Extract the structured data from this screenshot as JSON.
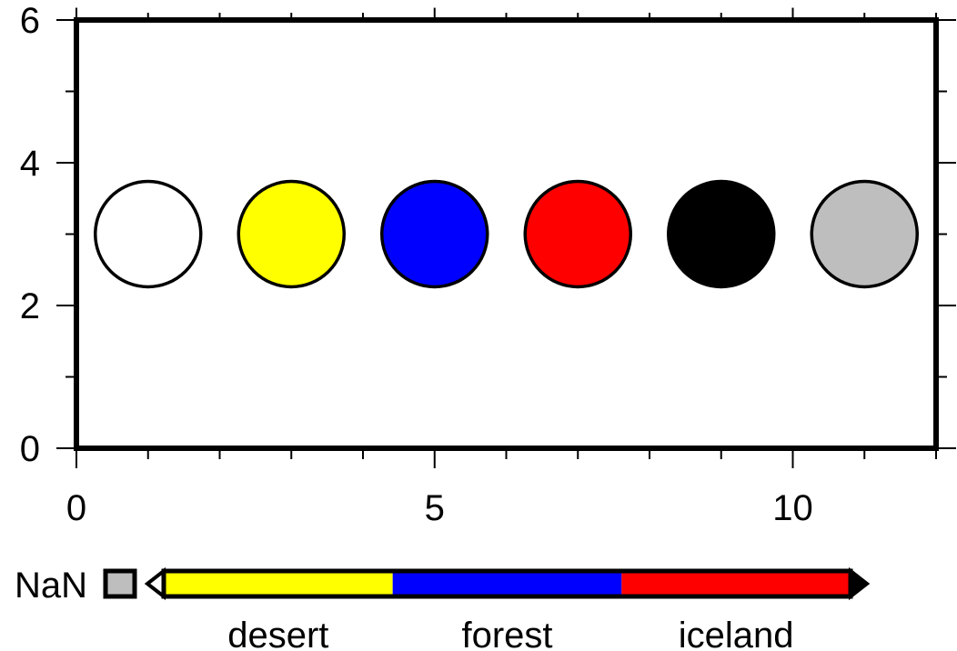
{
  "chart_data": {
    "type": "scatter",
    "xlim": [
      0,
      12
    ],
    "ylim": [
      0,
      6
    ],
    "x_ticks": [
      0,
      5,
      10
    ],
    "y_ticks": [
      0,
      2,
      4,
      6
    ],
    "x_tick_labels": [
      "0",
      "5",
      "10"
    ],
    "y_tick_labels": [
      "0",
      "2",
      "4",
      "6"
    ],
    "x_minor_step": 1,
    "y_minor_step": 1,
    "grid": false,
    "symbol": "circle",
    "points": [
      {
        "x": 1,
        "y": 3,
        "fill": "#ffffff",
        "outline": "#000000"
      },
      {
        "x": 3,
        "y": 3,
        "fill": "#ffff00",
        "outline": "#000000"
      },
      {
        "x": 5,
        "y": 3,
        "fill": "#0000ff",
        "outline": "#000000"
      },
      {
        "x": 7,
        "y": 3,
        "fill": "#ff0000",
        "outline": "#000000"
      },
      {
        "x": 9,
        "y": 3,
        "fill": "#000000",
        "outline": "#000000"
      },
      {
        "x": 11,
        "y": 3,
        "fill": "#bebebe",
        "outline": "#000000"
      }
    ],
    "colorbar": {
      "placement": "bottom",
      "nan_label": "NaN",
      "nan_color": "#bebebe",
      "background_color": "#ffffff",
      "foreground_color": "#000000",
      "categories": [
        {
          "label": "desert",
          "color": "#ffff00"
        },
        {
          "label": "forest",
          "color": "#0000ff"
        },
        {
          "label": "iceland",
          "color": "#ff0000"
        }
      ]
    }
  }
}
